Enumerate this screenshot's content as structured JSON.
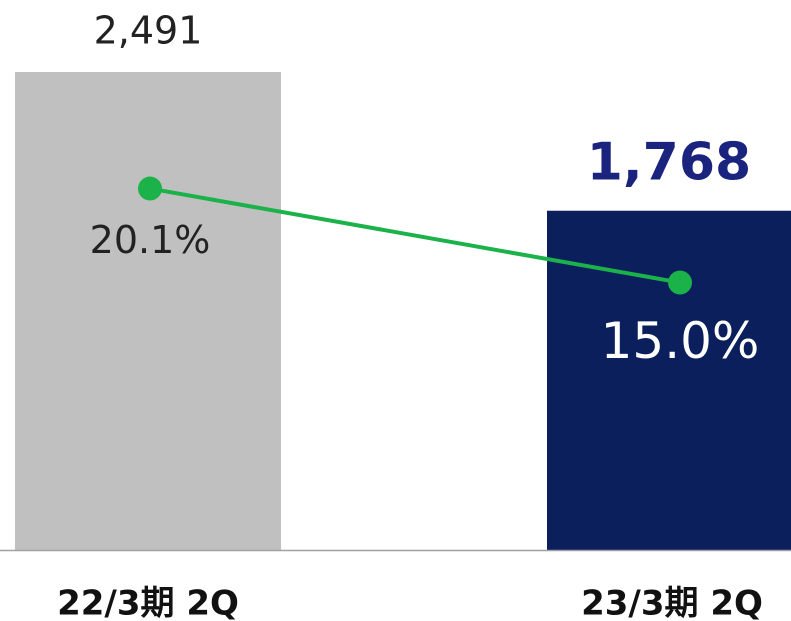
{
  "chart_data": {
    "type": "combo",
    "categories": [
      "22/3期 2Q",
      "23/3期 2Q"
    ],
    "bars": {
      "values": [
        2491,
        1768
      ],
      "value_labels": [
        "2,491",
        "1,768"
      ],
      "colors": [
        "#c0c0c0",
        "#0a1f5c"
      ]
    },
    "line": {
      "values": [
        20.1,
        15.0
      ],
      "value_labels": [
        "20.1%",
        "15.0%"
      ],
      "color": "#1bb24a"
    }
  }
}
